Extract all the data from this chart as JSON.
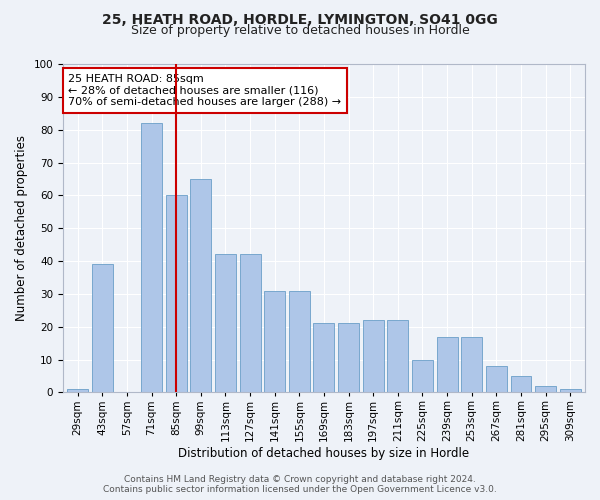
{
  "title": "25, HEATH ROAD, HORDLE, LYMINGTON, SO41 0GG",
  "subtitle": "Size of property relative to detached houses in Hordle",
  "xlabel": "Distribution of detached houses by size in Hordle",
  "ylabel": "Number of detached properties",
  "categories": [
    "29sqm",
    "43sqm",
    "57sqm",
    "71sqm",
    "85sqm",
    "99sqm",
    "113sqm",
    "127sqm",
    "141sqm",
    "155sqm",
    "169sqm",
    "183sqm",
    "197sqm",
    "211sqm",
    "225sqm",
    "239sqm",
    "253sqm",
    "267sqm",
    "281sqm",
    "295sqm",
    "309sqm"
  ],
  "values": [
    1,
    39,
    0,
    82,
    60,
    65,
    42,
    42,
    31,
    31,
    21,
    21,
    22,
    22,
    10,
    17,
    17,
    8,
    5,
    2,
    1
  ],
  "bar_color": "#aec6e8",
  "bar_edge_color": "#6a9fc8",
  "vline_index": 4,
  "vline_color": "#cc0000",
  "annotation_text": "25 HEATH ROAD: 85sqm\n← 28% of detached houses are smaller (116)\n70% of semi-detached houses are larger (288) →",
  "annotation_box_color": "#ffffff",
  "annotation_box_edge": "#cc0000",
  "ylim": [
    0,
    100
  ],
  "yticks": [
    0,
    10,
    20,
    30,
    40,
    50,
    60,
    70,
    80,
    90,
    100
  ],
  "footer": "Contains HM Land Registry data © Crown copyright and database right 2024.\nContains public sector information licensed under the Open Government Licence v3.0.",
  "bg_color": "#eef2f8",
  "title_fontsize": 10,
  "subtitle_fontsize": 9,
  "axis_label_fontsize": 8.5,
  "tick_fontsize": 7.5,
  "annotation_fontsize": 8,
  "footer_fontsize": 6.5
}
